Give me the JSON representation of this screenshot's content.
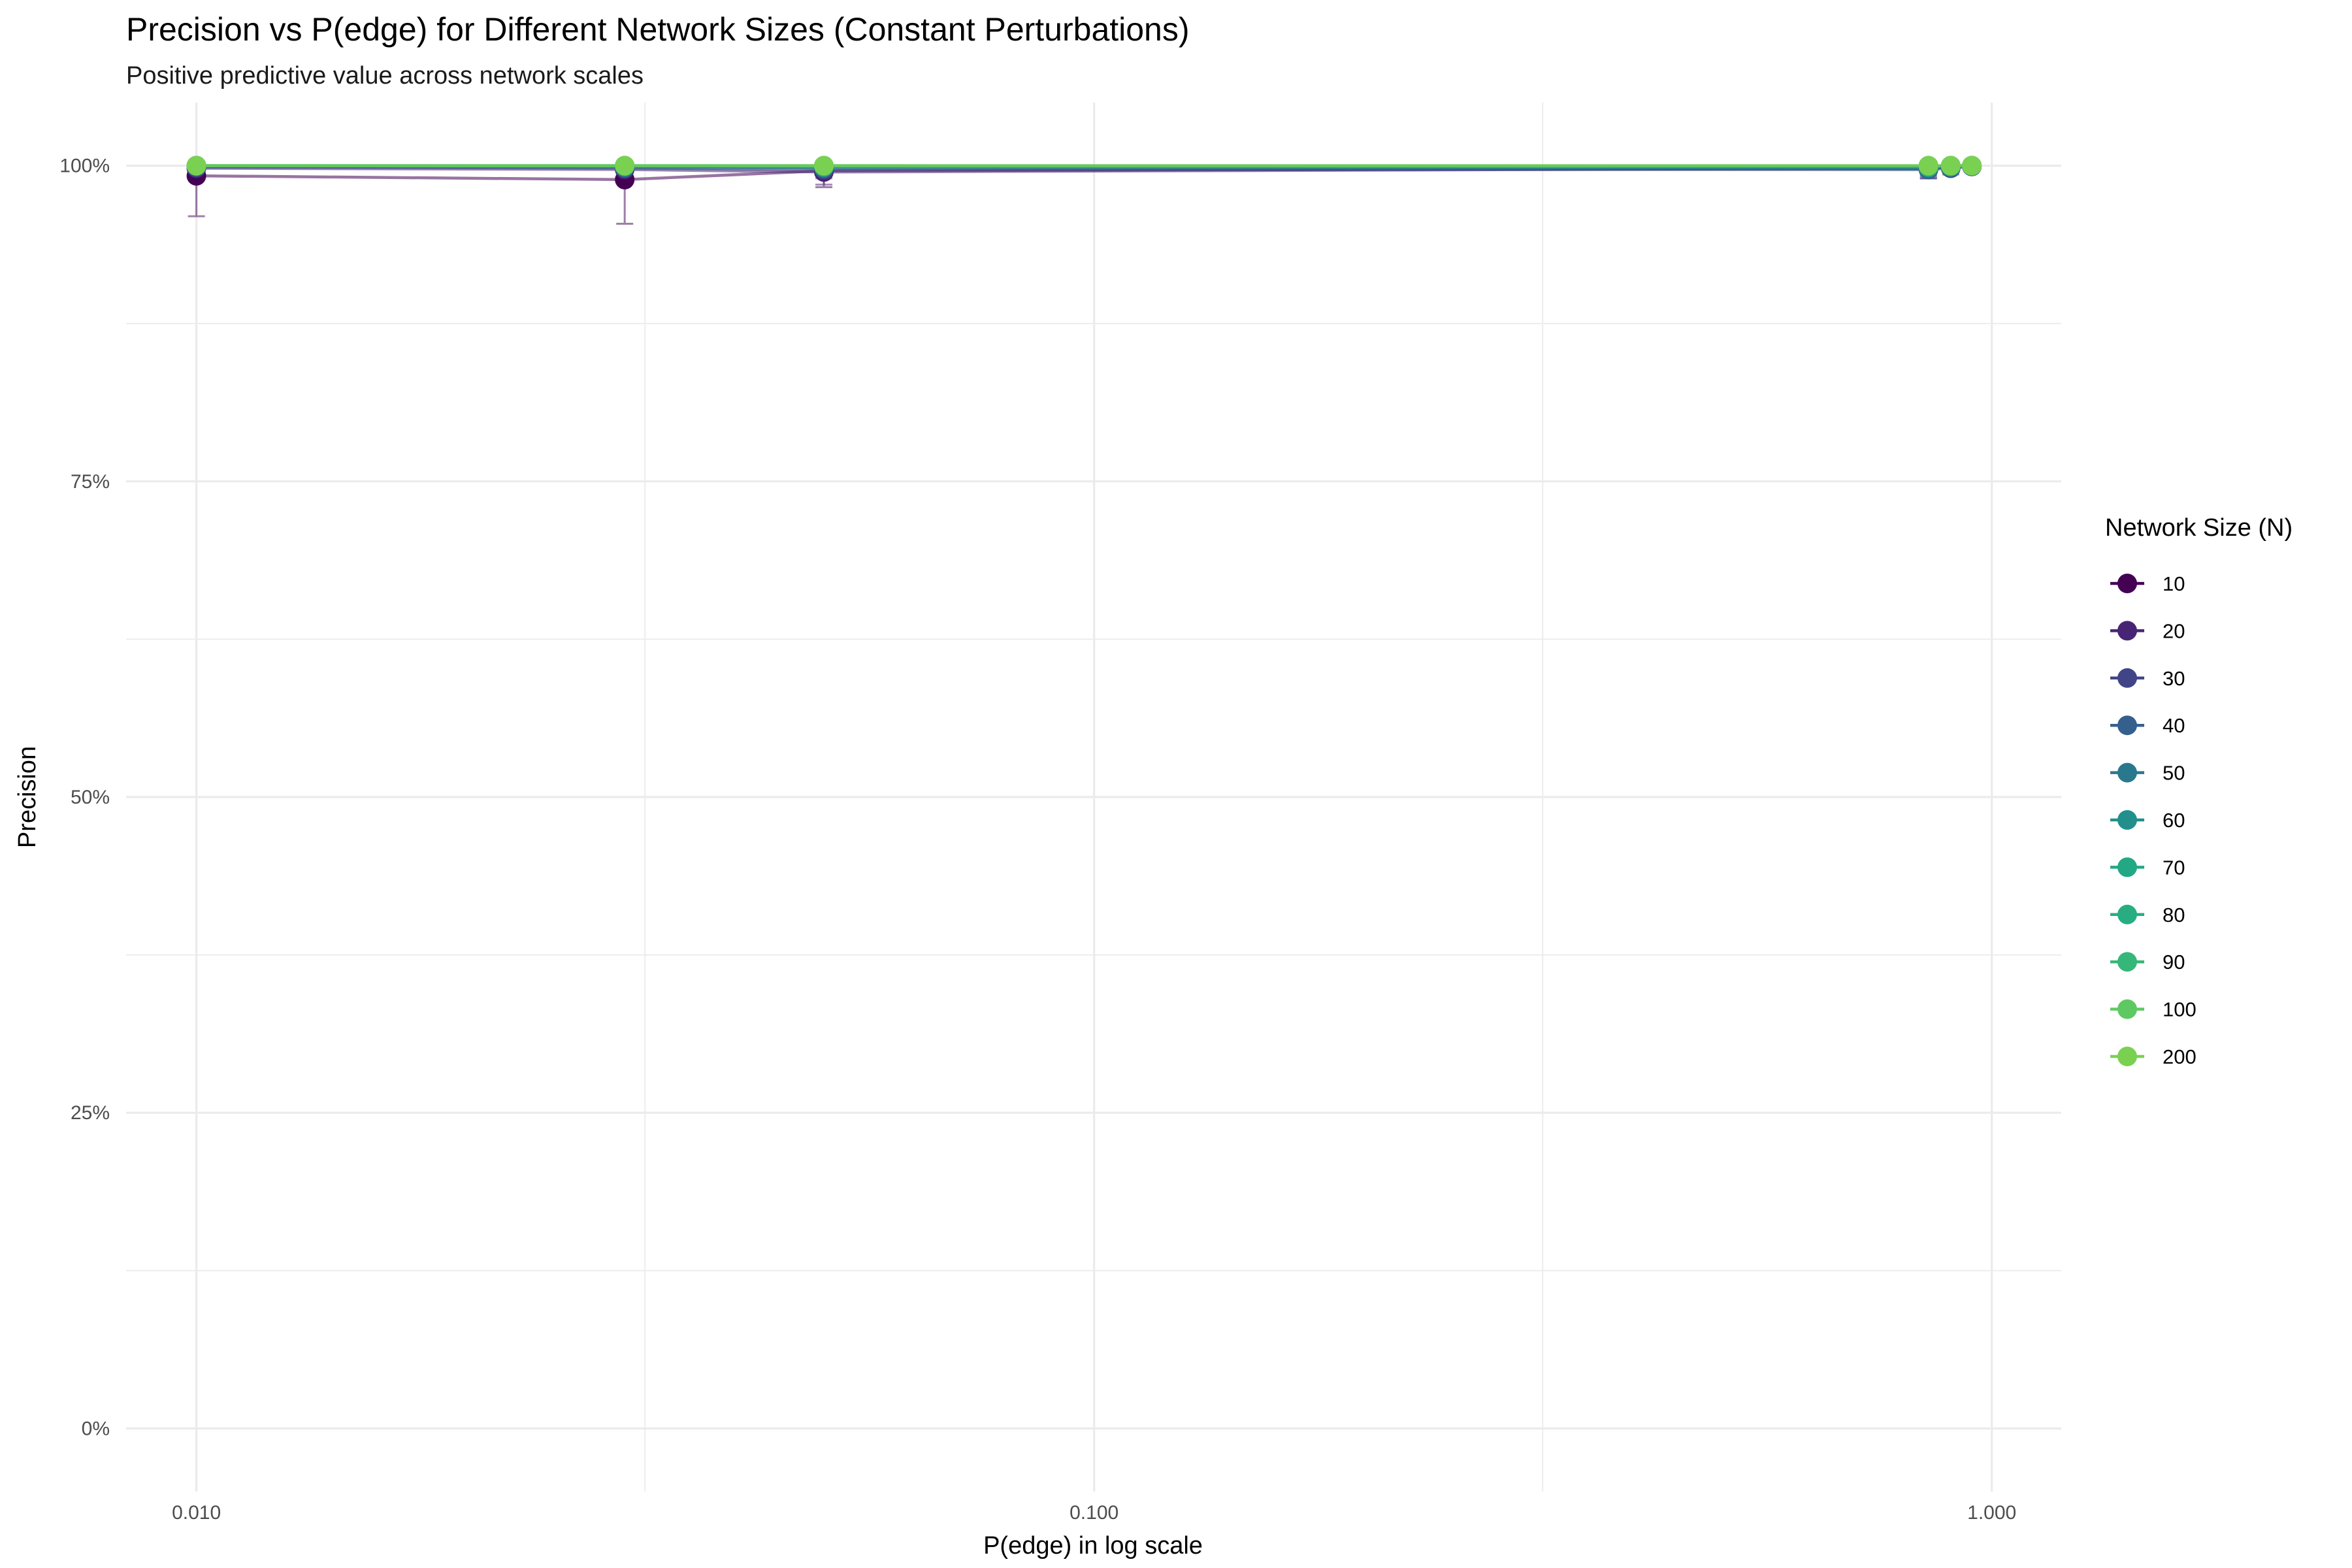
{
  "chart_data": {
    "type": "line",
    "title": "Precision vs P(edge) for Different Network Sizes (Constant Perturbations)",
    "subtitle": "Positive predictive value across network scales",
    "xlabel": "P(edge) in log scale",
    "ylabel": "Precision",
    "x_scale": "log10",
    "xlim": [
      0.00835,
      1.195
    ],
    "ylim": [
      -0.05,
      1.05
    ],
    "x_ticks": [
      0.01,
      0.1,
      1.0
    ],
    "x_tick_labels": [
      "0.010",
      "0.100",
      "1.000"
    ],
    "x_minor_ticks": [
      0.0316,
      0.316
    ],
    "y_ticks": [
      0,
      0.25,
      0.5,
      0.75,
      1.0
    ],
    "y_tick_labels": [
      "0%",
      "25%",
      "50%",
      "75%",
      "100%"
    ],
    "y_minor_ticks": [
      0.125,
      0.375,
      0.625,
      0.875
    ],
    "grid": true,
    "legend": {
      "title": "Network Size (N)",
      "position": "right"
    },
    "series": [
      {
        "name": "10",
        "color": "#440154",
        "x": [
          0.01,
          0.03,
          0.05,
          0.85,
          0.9,
          0.95
        ],
        "y": [
          0.992,
          0.989,
          0.996,
          0.998,
          0.999,
          0.9995
        ],
        "y_lower": [
          0.96,
          0.954,
          0.983,
          0.99,
          0.995,
          0.998
        ],
        "y_upper": [
          1.0,
          1.0,
          1.0,
          1.0,
          1.0,
          1.0
        ]
      },
      {
        "name": "20",
        "color": "#482475",
        "x": [
          0.01,
          0.03,
          0.05,
          0.85,
          0.9,
          0.95
        ],
        "y": [
          0.998,
          0.997,
          0.995,
          0.998,
          0.999,
          0.9995
        ],
        "y_lower": [
          0.99,
          0.988,
          0.985,
          0.992,
          0.995,
          0.998
        ],
        "y_upper": [
          1.0,
          1.0,
          1.0,
          1.0,
          1.0,
          1.0
        ]
      },
      {
        "name": "30",
        "color": "#414487",
        "x": [
          0.01,
          0.03,
          0.05,
          0.85,
          0.9,
          0.95
        ],
        "y": [
          0.999,
          0.998,
          0.997,
          0.997,
          0.998,
          0.9995
        ],
        "y_lower": [
          0.994,
          0.992,
          0.99,
          0.99,
          0.993,
          0.998
        ],
        "y_upper": [
          1.0,
          1.0,
          1.0,
          1.0,
          1.0,
          1.0
        ]
      },
      {
        "name": "40",
        "color": "#355F8D",
        "x": [
          0.01,
          0.03,
          0.05,
          0.85,
          0.9,
          0.95
        ],
        "y": [
          0.999,
          0.999,
          0.998,
          0.997,
          0.999,
          0.9995
        ],
        "y_lower": [
          0.996,
          0.995,
          0.993,
          0.991,
          0.995,
          0.998
        ],
        "y_upper": [
          1.0,
          1.0,
          1.0,
          1.0,
          1.0,
          1.0
        ]
      },
      {
        "name": "50",
        "color": "#2A788E",
        "x": [
          0.01,
          0.03,
          0.05,
          0.85,
          0.9,
          0.95
        ],
        "y": [
          1.0,
          0.999,
          0.999,
          0.998,
          0.999,
          1.0
        ],
        "y_lower": [
          0.997,
          0.996,
          0.995,
          0.993,
          0.996,
          0.999
        ],
        "y_upper": [
          1.0,
          1.0,
          1.0,
          1.0,
          1.0,
          1.0
        ]
      },
      {
        "name": "60",
        "color": "#21908C",
        "x": [
          0.01,
          0.03,
          0.05,
          0.85,
          0.9,
          0.95
        ],
        "y": [
          1.0,
          0.999,
          0.999,
          0.999,
          0.999,
          1.0
        ],
        "y_lower": [
          0.998,
          0.997,
          0.996,
          0.995,
          0.997,
          0.999
        ],
        "y_upper": [
          1.0,
          1.0,
          1.0,
          1.0,
          1.0,
          1.0
        ]
      },
      {
        "name": "70",
        "color": "#22A884",
        "x": [
          0.01,
          0.03,
          0.05,
          0.85,
          0.9,
          0.95
        ],
        "y": [
          1.0,
          1.0,
          0.999,
          0.999,
          1.0,
          1.0
        ],
        "y_lower": [
          0.998,
          0.998,
          0.997,
          0.996,
          0.998,
          0.999
        ],
        "y_upper": [
          1.0,
          1.0,
          1.0,
          1.0,
          1.0,
          1.0
        ]
      },
      {
        "name": "80",
        "color": "#27AD81",
        "x": [
          0.01,
          0.03,
          0.05,
          0.85,
          0.9,
          0.95
        ],
        "y": [
          1.0,
          1.0,
          1.0,
          0.999,
          1.0,
          1.0
        ],
        "y_lower": [
          0.999,
          0.998,
          0.998,
          0.997,
          0.998,
          0.999
        ],
        "y_upper": [
          1.0,
          1.0,
          1.0,
          1.0,
          1.0,
          1.0
        ]
      },
      {
        "name": "90",
        "color": "#35B779",
        "x": [
          0.01,
          0.03,
          0.05,
          0.85,
          0.9,
          0.95
        ],
        "y": [
          1.0,
          1.0,
          1.0,
          1.0,
          1.0,
          1.0
        ],
        "y_lower": [
          0.999,
          0.999,
          0.998,
          0.998,
          0.999,
          0.999
        ],
        "y_upper": [
          1.0,
          1.0,
          1.0,
          1.0,
          1.0,
          1.0
        ]
      },
      {
        "name": "100",
        "color": "#5EC962",
        "x": [
          0.01,
          0.03,
          0.05,
          0.85,
          0.9,
          0.95
        ],
        "y": [
          1.0,
          1.0,
          1.0,
          1.0,
          1.0,
          1.0
        ],
        "y_lower": [
          0.999,
          0.999,
          0.999,
          0.998,
          0.999,
          1.0
        ],
        "y_upper": [
          1.0,
          1.0,
          1.0,
          1.0,
          1.0,
          1.0
        ]
      },
      {
        "name": "200",
        "color": "#7AD151",
        "x": [
          0.01,
          0.03,
          0.05,
          0.85,
          0.9,
          0.95
        ],
        "y": [
          1.0,
          1.0,
          1.0,
          1.0,
          1.0,
          1.0
        ],
        "y_lower": [
          1.0,
          1.0,
          0.999,
          0.999,
          1.0,
          1.0
        ],
        "y_upper": [
          1.0,
          1.0,
          1.0,
          1.0,
          1.0,
          1.0
        ]
      }
    ]
  }
}
